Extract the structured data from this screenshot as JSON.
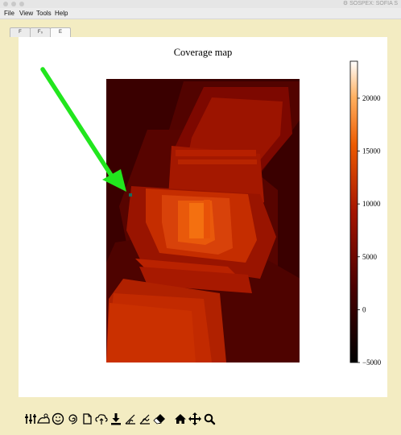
{
  "window": {
    "app_title": "SOSPEX: SOFIA S"
  },
  "menu": {
    "items": [
      "File",
      "View",
      "Tools",
      "Help"
    ]
  },
  "tabs": [
    {
      "label": "F"
    },
    {
      "label": "F₀"
    },
    {
      "label": "E"
    }
  ],
  "plot": {
    "title": "Coverage map",
    "colorbar": {
      "ticks": [
        "20000",
        "15000",
        "10000",
        "5000",
        "0",
        "−5000"
      ],
      "range": [
        -5000,
        23500
      ],
      "colormap": "gist_heat"
    }
  },
  "annotation": {
    "arrow_color": "#22e61e",
    "marker_color": "#1a6b5a"
  },
  "toolbar": {
    "icons": [
      "sliders-icon",
      "cloud-landscape-icon",
      "smiley-icon",
      "swirl-icon",
      "page-icon",
      "cloud-upload-icon",
      "download-icon",
      "line-fit-icon",
      "line-fit-2-icon",
      "eraser-icon",
      "home-icon",
      "pan-icon",
      "zoom-icon"
    ]
  }
}
